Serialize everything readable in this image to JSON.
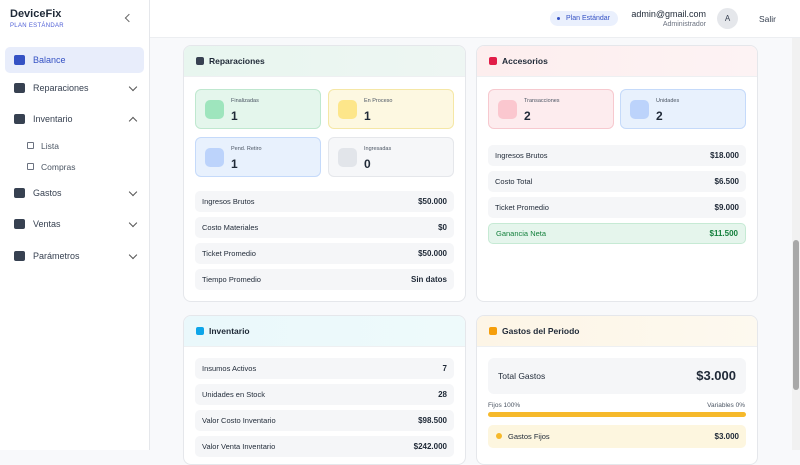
{
  "sidebar": {
    "brand": "DeviceFix",
    "plan": "PLAN ESTÁNDAR",
    "menu": [
      {
        "label": "Balance"
      },
      {
        "label": "Reparaciones"
      },
      {
        "label": "Inventario",
        "children": [
          "Lista",
          "Compras"
        ]
      },
      {
        "label": "Gastos"
      },
      {
        "label": "Ventas"
      },
      {
        "label": "Parámetros"
      }
    ]
  },
  "topbar": {
    "plan": "Plan Estándar",
    "email": "admin@gmail.com",
    "role": "Administrador",
    "avatar": "A",
    "logout": "Salir"
  },
  "cards": {
    "reparaciones": {
      "title": "Reparaciones",
      "tiles": [
        {
          "label": "Finalizadas",
          "value": 1
        },
        {
          "label": "En Proceso",
          "value": 1
        },
        {
          "label": "Pend. Retiro",
          "value": 1
        },
        {
          "label": "Ingresadas",
          "value": 0
        }
      ],
      "rows": [
        {
          "label": "Ingresos Brutos",
          "value": "$50.000"
        },
        {
          "label": "Costo Materiales",
          "value": "$0"
        },
        {
          "label": "Ticket Promedio",
          "value": "$50.000"
        },
        {
          "label": "Tiempo Promedio",
          "value": "Sin datos"
        }
      ]
    },
    "accesorios": {
      "title": "Accesorios",
      "tiles": [
        {
          "label": "Transacciones",
          "value": 2
        },
        {
          "label": "Unidades",
          "value": 2
        }
      ],
      "rows": [
        {
          "label": "Ingresos Brutos",
          "value": "$18.000"
        },
        {
          "label": "Costo Total",
          "value": "$6.500"
        },
        {
          "label": "Ticket Promedio",
          "value": "$9.000"
        },
        {
          "label": "Ganancia Neta",
          "value": "$11.500"
        }
      ]
    },
    "inventario": {
      "title": "Inventario",
      "rows": [
        {
          "label": "Insumos Activos",
          "value": "7"
        },
        {
          "label": "Unidades en Stock",
          "value": "28"
        },
        {
          "label": "Valor Costo Inventario",
          "value": "$98.500"
        },
        {
          "label": "Valor Venta Inventario",
          "value": "$242.000"
        }
      ]
    },
    "gastos": {
      "title": "Gastos del Periodo",
      "total_label": "Total Gastos",
      "total_value": "$3.000",
      "fixed": "Fijos 100%",
      "variable": "Variables 0%",
      "rows": [
        {
          "label": "Gastos Fijos",
          "value": "$3.000"
        }
      ]
    }
  }
}
